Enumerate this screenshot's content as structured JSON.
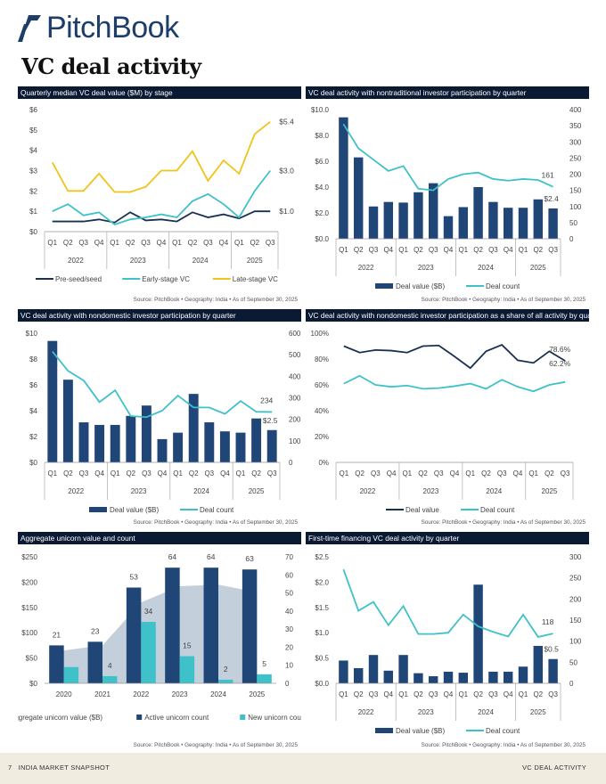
{
  "header": {
    "logo_text": "PitchBook",
    "page_title": "VC deal activity"
  },
  "footer": {
    "page_number": "7",
    "left_text": "INDIA MARKET SNAPSHOT",
    "right_text": "VC DEAL ACTIVITY"
  },
  "source_text": "Source: PitchBook • Geography: India • As of September 30, 2025",
  "colors": {
    "navy_bar": "#1f4677",
    "teal": "#3fc1c9",
    "yellow": "#f0c419",
    "dark_line": "#1b3150",
    "area": "#c4cfdc",
    "title_bar": "#0b1a33"
  },
  "chart_data": [
    {
      "type": "line",
      "title": "Quarterly median VC deal value ($M) by stage",
      "categories": [
        "Q1",
        "Q2",
        "Q3",
        "Q4",
        "Q1",
        "Q2",
        "Q3",
        "Q4",
        "Q1",
        "Q2",
        "Q3",
        "Q4",
        "Q1",
        "Q2",
        "Q3"
      ],
      "groups": [
        {
          "label": "2022",
          "count": 4
        },
        {
          "label": "2023",
          "count": 4
        },
        {
          "label": "2024",
          "count": 4
        },
        {
          "label": "2025",
          "count": 3
        }
      ],
      "ylim": [
        0,
        6
      ],
      "yticks": [
        "$0",
        "$1",
        "$2",
        "$3",
        "$4",
        "$5",
        "$6"
      ],
      "legend": "bottom",
      "series": [
        {
          "name": "Pre-seed/seed",
          "kind": "line",
          "color": "#1b3150",
          "values": [
            0.5,
            0.5,
            0.5,
            0.6,
            0.45,
            0.95,
            0.55,
            0.6,
            0.5,
            0.95,
            0.7,
            0.85,
            0.65,
            1.0,
            1.0
          ],
          "end_label": "$1.0"
        },
        {
          "name": "Early-stage VC",
          "kind": "line",
          "color": "#3fc1c9",
          "values": [
            1.0,
            1.35,
            0.8,
            0.95,
            0.35,
            0.6,
            0.7,
            0.85,
            0.7,
            1.5,
            1.85,
            1.35,
            0.7,
            2.0,
            3.0
          ],
          "end_label": "$3.0"
        },
        {
          "name": "Late-stage VC",
          "kind": "line",
          "color": "#f0c419",
          "values": [
            3.4,
            2.0,
            2.0,
            2.85,
            1.95,
            1.95,
            2.2,
            3.0,
            3.0,
            3.95,
            2.5,
            3.5,
            2.85,
            4.8,
            5.4
          ],
          "end_label": "$5.4"
        }
      ]
    },
    {
      "type": "bar",
      "title": "VC deal activity with nontraditional investor participation by quarter",
      "categories": [
        "Q1",
        "Q2",
        "Q3",
        "Q4",
        "Q1",
        "Q2",
        "Q3",
        "Q4",
        "Q1",
        "Q2",
        "Q3",
        "Q4",
        "Q1",
        "Q2",
        "Q3"
      ],
      "groups": [
        {
          "label": "2022",
          "count": 4
        },
        {
          "label": "2023",
          "count": 4
        },
        {
          "label": "2024",
          "count": 4
        },
        {
          "label": "2025",
          "count": 3
        }
      ],
      "ylim": [
        0,
        10
      ],
      "yticks": [
        "$0.0",
        "$2.0",
        "$4.0",
        "$6.0",
        "$8.0",
        "$10.0"
      ],
      "y2lim": [
        0,
        400
      ],
      "y2ticks": [
        "0",
        "50",
        "100",
        "150",
        "200",
        "250",
        "300",
        "350",
        "400"
      ],
      "legend": "bottom",
      "series": [
        {
          "name": "Deal value ($B)",
          "kind": "bar",
          "color": "#1f4677",
          "values": [
            9.4,
            6.3,
            2.5,
            2.85,
            2.8,
            3.6,
            4.3,
            1.75,
            2.45,
            4.0,
            2.85,
            2.4,
            2.4,
            3.05,
            2.35
          ],
          "end_label": "$2.4"
        },
        {
          "name": "Deal count",
          "kind": "line",
          "axis": "right",
          "color": "#3fc1c9",
          "values": [
            355,
            280,
            245,
            210,
            225,
            155,
            150,
            185,
            200,
            205,
            185,
            180,
            185,
            182,
            161
          ],
          "end_label": "161"
        }
      ]
    },
    {
      "type": "bar",
      "title": "VC deal activity with nondomestic investor participation by quarter",
      "categories": [
        "Q1",
        "Q2",
        "Q3",
        "Q4",
        "Q1",
        "Q2",
        "Q3",
        "Q4",
        "Q1",
        "Q2",
        "Q3",
        "Q4",
        "Q1",
        "Q2",
        "Q3"
      ],
      "groups": [
        {
          "label": "2022",
          "count": 4
        },
        {
          "label": "2023",
          "count": 4
        },
        {
          "label": "2024",
          "count": 4
        },
        {
          "label": "2025",
          "count": 3
        }
      ],
      "ylim": [
        0,
        10
      ],
      "yticks": [
        "$0",
        "$2",
        "$4",
        "$6",
        "$8",
        "$10"
      ],
      "y2lim": [
        0,
        600
      ],
      "y2ticks": [
        "0",
        "100",
        "200",
        "300",
        "400",
        "500",
        "600"
      ],
      "legend": "bottom",
      "series": [
        {
          "name": "Deal value ($B)",
          "kind": "bar",
          "color": "#1f4677",
          "values": [
            9.4,
            6.4,
            3.1,
            2.9,
            2.9,
            3.6,
            4.4,
            1.8,
            2.3,
            5.3,
            3.1,
            2.4,
            2.3,
            3.4,
            2.5
          ],
          "end_label": "$2.5"
        },
        {
          "name": "Deal count",
          "kind": "line",
          "axis": "right",
          "color": "#3fc1c9",
          "values": [
            515,
            425,
            380,
            280,
            335,
            215,
            210,
            240,
            310,
            255,
            255,
            225,
            285,
            235,
            234
          ],
          "end_label": "234"
        }
      ]
    },
    {
      "type": "line",
      "title": "VC deal activity with nondomestic investor participation as a share of all activity by quarter",
      "categories": [
        "Q1",
        "Q2",
        "Q3",
        "Q4",
        "Q1",
        "Q2",
        "Q3",
        "Q4",
        "Q1",
        "Q2",
        "Q3",
        "Q4",
        "Q1",
        "Q2",
        "Q3"
      ],
      "groups": [
        {
          "label": "2022",
          "count": 4
        },
        {
          "label": "2023",
          "count": 4
        },
        {
          "label": "2024",
          "count": 4
        },
        {
          "label": "2025",
          "count": 3
        }
      ],
      "ylim": [
        0,
        100
      ],
      "yticks": [
        "0%",
        "20%",
        "40%",
        "60%",
        "80%",
        "100%"
      ],
      "legend": "bottom",
      "series": [
        {
          "name": "Deal value",
          "kind": "line",
          "color": "#1b3150",
          "values": [
            90,
            85,
            87,
            86.5,
            85,
            90,
            90.5,
            82,
            73,
            86,
            91,
            79,
            77,
            86,
            78.6
          ],
          "end_label": "78.6%"
        },
        {
          "name": "Deal count",
          "kind": "line",
          "color": "#3fc1c9",
          "values": [
            61,
            67,
            60,
            58.5,
            59.5,
            57,
            57.5,
            59,
            61,
            57,
            64,
            58.5,
            55,
            60,
            62.2
          ],
          "end_label": "62.2%"
        }
      ]
    },
    {
      "type": "bar",
      "title": "Aggregate unicorn value and count",
      "categories": [
        "2020",
        "2021",
        "2022",
        "2023",
        "2024",
        "2025"
      ],
      "ylim": [
        0,
        250
      ],
      "yticks": [
        "$0",
        "$50",
        "$100",
        "$150",
        "$200",
        "$250"
      ],
      "y2lim": [
        0,
        70
      ],
      "y2ticks": [
        "0",
        "10",
        "20",
        "30",
        "40",
        "50",
        "60",
        "70"
      ],
      "legend": "bottom",
      "series": [
        {
          "name": "Aggregate unicorn value ($B)",
          "kind": "area",
          "color": "#c4cfdc",
          "values": [
            65,
            75,
            160,
            192,
            195,
            180
          ]
        },
        {
          "name": "Active unicorn count",
          "kind": "bar",
          "axis": "right",
          "color": "#1f4677",
          "values": [
            21,
            23,
            53,
            64,
            64,
            63
          ],
          "labels": [
            "21",
            "23",
            "53",
            "64",
            "64",
            "63"
          ]
        },
        {
          "name": "New unicorn count",
          "kind": "bar",
          "axis": "right",
          "color": "#3fc1c9",
          "values": [
            9,
            4,
            34,
            15,
            2,
            5
          ],
          "labels": [
            "",
            "4",
            "34",
            "15",
            "2",
            "5"
          ]
        }
      ]
    },
    {
      "type": "bar",
      "title": "First-time financing VC deal activity by quarter",
      "categories": [
        "Q1",
        "Q2",
        "Q3",
        "Q4",
        "Q1",
        "Q2",
        "Q3",
        "Q4",
        "Q1",
        "Q2",
        "Q3",
        "Q4",
        "Q1",
        "Q2",
        "Q3"
      ],
      "groups": [
        {
          "label": "2022",
          "count": 4
        },
        {
          "label": "2023",
          "count": 4
        },
        {
          "label": "2024",
          "count": 4
        },
        {
          "label": "2025",
          "count": 3
        }
      ],
      "ylim": [
        0,
        2.5
      ],
      "yticks": [
        "$0.0",
        "$0.5",
        "$1.0",
        "$1.5",
        "$2.0",
        "$2.5"
      ],
      "y2lim": [
        0,
        300
      ],
      "y2ticks": [
        "0",
        "50",
        "100",
        "150",
        "200",
        "250",
        "300"
      ],
      "legend": "bottom",
      "series": [
        {
          "name": "Deal value ($B)",
          "kind": "bar",
          "color": "#1f4677",
          "values": [
            0.45,
            0.3,
            0.56,
            0.25,
            0.56,
            0.2,
            0.14,
            0.23,
            0.21,
            1.95,
            0.23,
            0.23,
            0.33,
            0.74,
            0.48
          ],
          "end_label": "$0.5"
        },
        {
          "name": "Deal count",
          "kind": "line",
          "axis": "right",
          "color": "#3fc1c9",
          "values": [
            270,
            172,
            193,
            138,
            183,
            117,
            117,
            120,
            163,
            135,
            122,
            111,
            163,
            110,
            118
          ],
          "end_label": "118"
        }
      ]
    }
  ]
}
